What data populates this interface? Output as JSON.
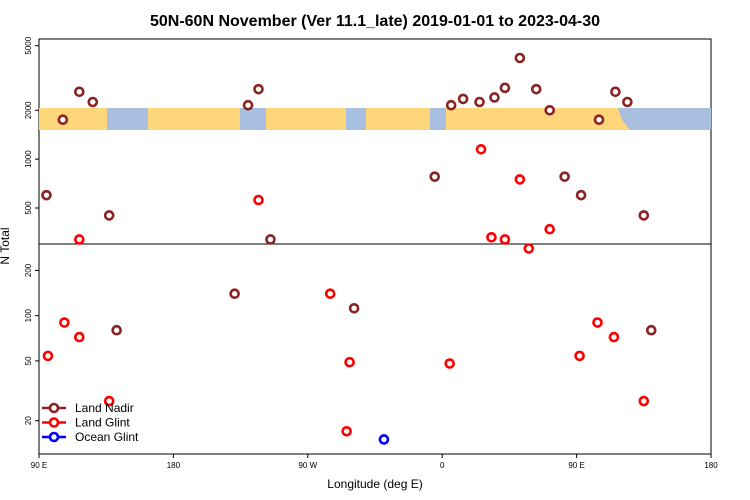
{
  "chart_data": {
    "type": "scatter",
    "title": "50N-60N November (Ver 11.1_late)   2019-01-01 to 2023-04-30",
    "xlabel": "Longitude (deg E)",
    "ylabel": "N Total",
    "y_scale": "log",
    "x_ticks": [
      {
        "value": 90,
        "label": "90 E"
      },
      {
        "value": 180,
        "label": "180"
      },
      {
        "value": 270,
        "label": "90 W"
      },
      {
        "value": 360,
        "label": "0"
      },
      {
        "value": 450,
        "label": "90 E"
      },
      {
        "value": 540,
        "label": "180"
      }
    ],
    "xlim": [
      90,
      540
    ],
    "y_ticks_upper": [
      {
        "value": 500,
        "label": "500"
      },
      {
        "value": 1000,
        "label": "1000"
      },
      {
        "value": 2000,
        "label": "2000"
      },
      {
        "value": 5000,
        "label": "5000"
      }
    ],
    "y_ticks_lower": [
      {
        "value": 20,
        "label": "20"
      },
      {
        "value": 50,
        "label": "50"
      },
      {
        "value": 100,
        "label": "100"
      },
      {
        "value": 200,
        "label": "200"
      }
    ],
    "ylim_upper": [
      300,
      5500
    ],
    "ylim_lower": [
      12,
      300
    ],
    "map_band": {
      "ocean_color": "#a8bfdf",
      "land_color": "#ffd77a"
    },
    "series": [
      {
        "name": "Land Nadir",
        "color": "#8b2323",
        "points": [
          [
            95,
            600
          ],
          [
            106,
            1750
          ],
          [
            117,
            2600
          ],
          [
            126,
            2250
          ],
          [
            137,
            450
          ],
          [
            230,
            2150
          ],
          [
            237,
            2700
          ],
          [
            245,
            320
          ],
          [
            355,
            780
          ],
          [
            366,
            2150
          ],
          [
            374,
            2350
          ],
          [
            385,
            2250
          ],
          [
            395,
            2400
          ],
          [
            402,
            2750
          ],
          [
            412,
            4200
          ],
          [
            423,
            2700
          ],
          [
            432,
            2000
          ],
          [
            442,
            780
          ],
          [
            453,
            600
          ],
          [
            465,
            1750
          ],
          [
            476,
            2600
          ],
          [
            484,
            2250
          ],
          [
            495,
            450
          ],
          [
            142,
            80
          ],
          [
            221,
            140
          ],
          [
            301,
            112
          ],
          [
            500,
            80
          ]
        ]
      },
      {
        "name": "Land Glint",
        "color": "#ff0000",
        "points": [
          [
            117,
            320
          ],
          [
            237,
            560
          ],
          [
            393,
            330
          ],
          [
            402,
            320
          ],
          [
            412,
            750
          ],
          [
            418,
            280
          ],
          [
            432,
            370
          ],
          [
            386,
            1150
          ],
          [
            96,
            54
          ],
          [
            107,
            90
          ],
          [
            117,
            72
          ],
          [
            137,
            27
          ],
          [
            285,
            140
          ],
          [
            298,
            49
          ],
          [
            296,
            17
          ],
          [
            365,
            48
          ],
          [
            452,
            54
          ],
          [
            464,
            90
          ],
          [
            475,
            72
          ],
          [
            495,
            27
          ]
        ]
      },
      {
        "name": "Ocean Glint",
        "color": "#0000ff",
        "points": [
          [
            321,
            15
          ]
        ]
      }
    ],
    "legend": {
      "position": "bottom-left",
      "entries": [
        "Land Nadir",
        "Land Glint",
        "Ocean Glint"
      ]
    }
  }
}
